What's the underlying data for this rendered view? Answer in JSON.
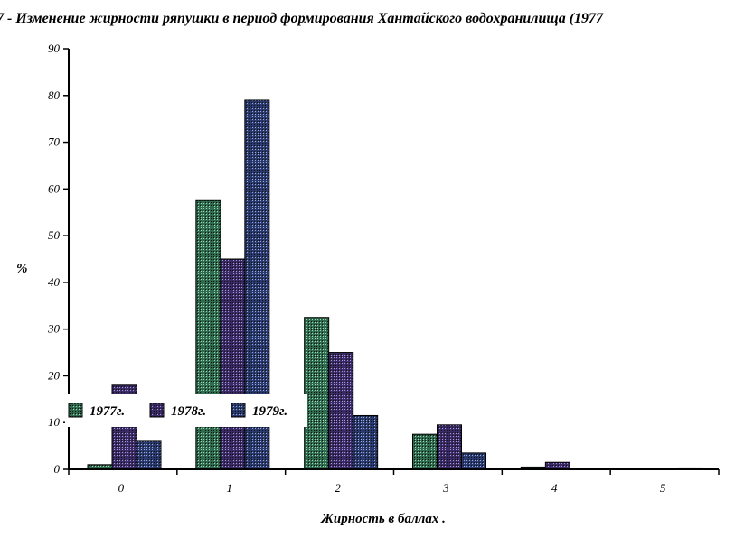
{
  "chart_data": {
    "type": "bar",
    "title": "7 - Изменение жирности ряпушки в период формирования Хантайского водохранилища (1977",
    "xlabel": "Жирность в баллах .",
    "ylabel": "%",
    "ylim": [
      0,
      90
    ],
    "yticks": [
      0,
      10,
      20,
      30,
      40,
      50,
      60,
      70,
      80,
      90
    ],
    "categories": [
      "0",
      "1",
      "2",
      "3",
      "4",
      "5"
    ],
    "series": [
      {
        "name": "1977г.",
        "values": [
          1,
          57.5,
          32.5,
          7.5,
          0.5,
          0
        ],
        "pattern_color": "#2f6b4f",
        "highlight_color": "#9fd6b8"
      },
      {
        "name": "1978г.",
        "values": [
          18,
          45,
          25,
          9.5,
          1.5,
          0
        ],
        "pattern_color": "#3a2a66",
        "highlight_color": "#a898d8"
      },
      {
        "name": "1979г.",
        "values": [
          6,
          79,
          11.5,
          3.5,
          0,
          0.3
        ],
        "pattern_color": "#2a3a6e",
        "highlight_color": "#98acd8"
      }
    ],
    "grid": false,
    "legend_position": "inside-bottom-left"
  }
}
